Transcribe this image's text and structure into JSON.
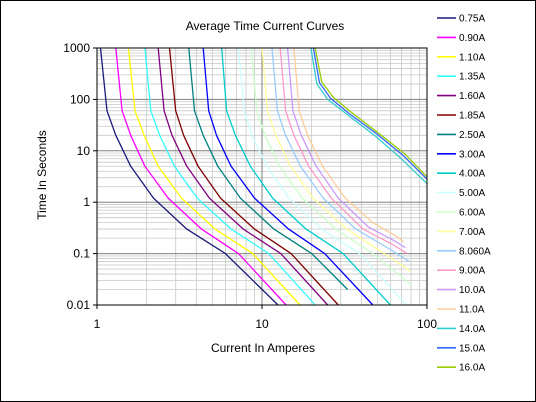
{
  "chart_data": {
    "type": "line",
    "title": "Average Time Current Curves",
    "xlabel": "Current In Amperes",
    "ylabel": "Time In Seconds",
    "x_scale": "log",
    "y_scale": "log",
    "xlim": [
      1,
      100
    ],
    "ylim": [
      0.01,
      1000
    ],
    "x_ticks": [
      "1",
      "10",
      "100"
    ],
    "y_ticks": [
      "0.01",
      "0.1",
      "1",
      "10",
      "100",
      "1000"
    ],
    "grid": true,
    "legend_position": "right",
    "series": [
      {
        "name": "0.75A",
        "color": "#1a1a7a",
        "x": [
          1.05,
          1.15,
          1.3,
          1.6,
          2.2,
          3.5,
          6,
          12.5
        ],
        "y": [
          1000,
          60,
          20,
          5,
          1.2,
          0.3,
          0.1,
          0.01
        ]
      },
      {
        "name": "0.90A",
        "color": "#ff00ff",
        "x": [
          1.3,
          1.42,
          1.6,
          1.95,
          2.7,
          4.3,
          7.2,
          14
        ],
        "y": [
          1000,
          60,
          20,
          5,
          1.2,
          0.3,
          0.1,
          0.01
        ]
      },
      {
        "name": "1.10A",
        "color": "#ffff00",
        "x": [
          1.55,
          1.7,
          1.93,
          2.35,
          3.25,
          5.2,
          8.8,
          17
        ],
        "y": [
          1000,
          60,
          20,
          5,
          1.2,
          0.3,
          0.1,
          0.01
        ]
      },
      {
        "name": "1.35A",
        "color": "#33ffff",
        "x": [
          1.95,
          2.12,
          2.4,
          2.95,
          4.05,
          6.5,
          11,
          21
        ],
        "y": [
          1000,
          60,
          20,
          5,
          1.2,
          0.3,
          0.1,
          0.01
        ]
      },
      {
        "name": "1.60A",
        "color": "#800080",
        "x": [
          2.35,
          2.55,
          2.85,
          3.5,
          4.8,
          7.7,
          13,
          25
        ],
        "y": [
          1000,
          60,
          20,
          5,
          1.2,
          0.3,
          0.1,
          0.01
        ]
      },
      {
        "name": "1.85A",
        "color": "#800000",
        "x": [
          2.75,
          3.0,
          3.35,
          4.1,
          5.6,
          9,
          15,
          29
        ],
        "y": [
          1000,
          60,
          20,
          5,
          1.2,
          0.3,
          0.1,
          0.01
        ]
      },
      {
        "name": "2.50A",
        "color": "#008080",
        "x": [
          3.6,
          3.9,
          4.4,
          5.4,
          7.4,
          11.8,
          20,
          33
        ],
        "y": [
          1000,
          60,
          20,
          5,
          1.2,
          0.3,
          0.1,
          0.02
        ]
      },
      {
        "name": "3.00A",
        "color": "#0000ff",
        "x": [
          4.4,
          4.75,
          5.3,
          6.5,
          9,
          14.5,
          24,
          47
        ],
        "y": [
          1000,
          60,
          20,
          5,
          1.2,
          0.3,
          0.1,
          0.01
        ]
      },
      {
        "name": "4.00A",
        "color": "#00cccc",
        "x": [
          5.7,
          6.1,
          6.9,
          8.5,
          11.6,
          18.5,
          31,
          60
        ],
        "y": [
          1000,
          60,
          20,
          5,
          1.2,
          0.3,
          0.1,
          0.01
        ]
      },
      {
        "name": "5.00A",
        "color": "#ccffff",
        "x": [
          7.2,
          7.8,
          8.7,
          10.7,
          14.6,
          23,
          39,
          75
        ],
        "y": [
          1000,
          60,
          20,
          5,
          1.2,
          0.3,
          0.1,
          0.01
        ]
      },
      {
        "name": "6.00A",
        "color": "#ccffcc",
        "x": [
          8.6,
          9.3,
          10.4,
          12.8,
          17.5,
          28,
          47,
          80
        ],
        "y": [
          1000,
          60,
          20,
          5,
          1.2,
          0.3,
          0.1,
          0.025
        ]
      },
      {
        "name": "7.00A",
        "color": "#ffff99",
        "x": [
          10,
          10.8,
          12.1,
          14.9,
          20.4,
          32.5,
          55,
          80
        ],
        "y": [
          1000,
          60,
          20,
          5,
          1.2,
          0.3,
          0.1,
          0.045
        ]
      },
      {
        "name": "8.060A",
        "color": "#99ccff",
        "x": [
          11.5,
          12.4,
          13.9,
          17.1,
          23.5,
          37,
          60,
          78
        ],
        "y": [
          1000,
          60,
          20,
          5,
          1.2,
          0.3,
          0.12,
          0.07
        ]
      },
      {
        "name": "9.00A",
        "color": "#ff99cc",
        "x": [
          12.9,
          13.9,
          15.6,
          19.2,
          26.3,
          41,
          62,
          76
        ],
        "y": [
          1000,
          60,
          20,
          5,
          1.2,
          0.3,
          0.15,
          0.1
        ]
      },
      {
        "name": "10.0A",
        "color": "#cc99ff",
        "x": [
          14.3,
          15.4,
          17.3,
          21.3,
          29,
          44,
          63,
          74
        ],
        "y": [
          1000,
          60,
          20,
          5,
          1.2,
          0.33,
          0.18,
          0.13
        ]
      },
      {
        "name": "11.0A",
        "color": "#ffcc99",
        "x": [
          15.6,
          16.8,
          18.9,
          23.3,
          32,
          47,
          65,
          72
        ],
        "y": [
          1000,
          60,
          20,
          5,
          1.2,
          0.4,
          0.22,
          0.17
        ]
      },
      {
        "name": "14.0A",
        "color": "#33cccc",
        "x": [
          19.8,
          21.5,
          25,
          33,
          48,
          70,
          100
        ],
        "y": [
          1000,
          200,
          100,
          50,
          20,
          7,
          2.3
        ]
      },
      {
        "name": "15.0A",
        "color": "#3366ff",
        "x": [
          20.5,
          22.3,
          26,
          34,
          49,
          72,
          100
        ],
        "y": [
          1000,
          210,
          105,
          52,
          22,
          8,
          2.8
        ]
      },
      {
        "name": "16.0A",
        "color": "#99cc00",
        "x": [
          21,
          23,
          27,
          35,
          50,
          74,
          100
        ],
        "y": [
          1000,
          220,
          110,
          55,
          23,
          8.5,
          3.1
        ]
      }
    ]
  }
}
